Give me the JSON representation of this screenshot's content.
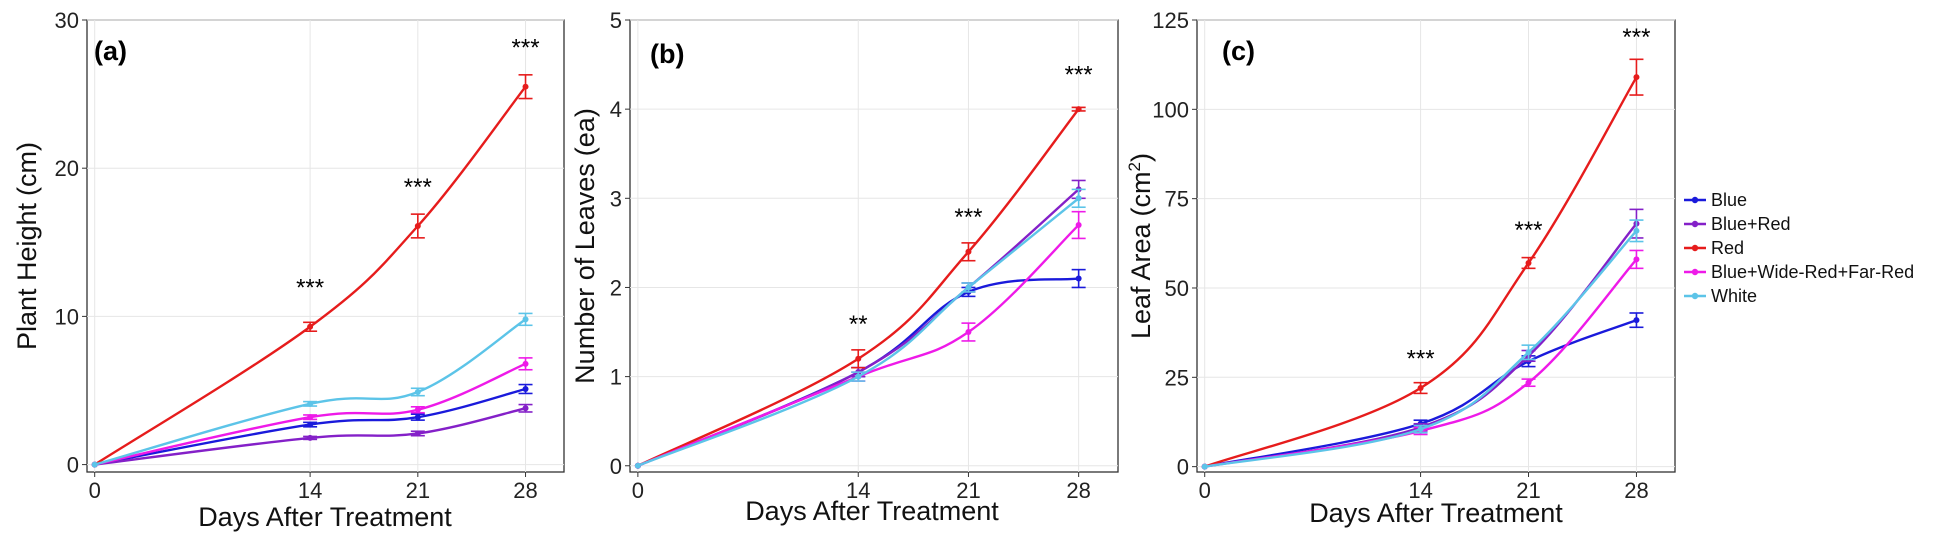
{
  "colors": {
    "Blue": "#1a1adb",
    "Blue+Red": "#8420c8",
    "Red": "#e61c1c",
    "Blue+Wide-Red+Far-Red": "#ee1ae8",
    "White": "#5cc4e8"
  },
  "legend": {
    "placement": "right",
    "entries": [
      "Blue",
      "Blue+Red",
      "Red",
      "Blue+Wide-Red+Far-Red",
      "White"
    ]
  },
  "chart_data": [
    {
      "type": "line",
      "panel_label": "(a)",
      "xlabel": "Days After Treatment",
      "ylabel": "Plant Height (cm)",
      "ylabel_main": "Plant Height",
      "ylabel_unit": "(cm)",
      "x": [
        0,
        14,
        21,
        28
      ],
      "xticks": [
        "0",
        "14",
        "21",
        "28"
      ],
      "xlim": [
        -0.5,
        30.5
      ],
      "ylim": [
        -0.5,
        30
      ],
      "yticks": [
        0,
        10,
        20,
        30
      ],
      "ytick_labels": [
        "0",
        "10",
        "20",
        "30"
      ],
      "grid": true,
      "series": [
        {
          "name": "Blue",
          "values": [
            0,
            2.7,
            3.2,
            5.1
          ],
          "errors": [
            0,
            0.15,
            0.2,
            0.3
          ]
        },
        {
          "name": "Blue+Red",
          "values": [
            0,
            1.8,
            2.1,
            3.8
          ],
          "errors": [
            0,
            0.1,
            0.15,
            0.25
          ]
        },
        {
          "name": "Red",
          "values": [
            0,
            9.3,
            16.1,
            25.5
          ],
          "errors": [
            0,
            0.3,
            0.8,
            0.8
          ]
        },
        {
          "name": "Blue+Wide-Red+Far-Red",
          "values": [
            0,
            3.2,
            3.7,
            6.8
          ],
          "errors": [
            0,
            0.15,
            0.2,
            0.4
          ]
        },
        {
          "name": "White",
          "values": [
            0,
            4.1,
            4.9,
            9.8
          ],
          "errors": [
            0,
            0.15,
            0.25,
            0.4
          ]
        }
      ],
      "annotations": [
        {
          "x": 14,
          "y": 11.4,
          "text": "***"
        },
        {
          "x": 21,
          "y": 18.2,
          "text": "***"
        },
        {
          "x": 28,
          "y": 27.6,
          "text": "***"
        }
      ]
    },
    {
      "type": "line",
      "panel_label": "(b)",
      "xlabel": "Days After Treatment",
      "ylabel": "Number of Leaves (ea)",
      "ylabel_main": "Number of Leaves",
      "ylabel_unit": "(ea)",
      "x": [
        0,
        14,
        21,
        28
      ],
      "xticks": [
        "0",
        "14",
        "21",
        "28"
      ],
      "xlim": [
        -0.5,
        30.5
      ],
      "ylim": [
        -0.07,
        5
      ],
      "yticks": [
        0,
        1,
        2,
        3,
        4,
        5
      ],
      "ytick_labels": [
        "0",
        "1",
        "2",
        "3",
        "4",
        "5"
      ],
      "grid": true,
      "series": [
        {
          "name": "Blue",
          "values": [
            0,
            1.05,
            1.95,
            2.1
          ],
          "errors": [
            0,
            0.05,
            0.05,
            0.1
          ]
        },
        {
          "name": "Blue+Red",
          "values": [
            0,
            1.05,
            2.0,
            3.1
          ],
          "errors": [
            0,
            0.05,
            0.05,
            0.1
          ]
        },
        {
          "name": "Red",
          "values": [
            0,
            1.2,
            2.4,
            4.0
          ],
          "errors": [
            0,
            0.1,
            0.1,
            0.02
          ]
        },
        {
          "name": "Blue+Wide-Red+Far-Red",
          "values": [
            0,
            1.0,
            1.5,
            2.7
          ],
          "errors": [
            0,
            0.05,
            0.1,
            0.15
          ]
        },
        {
          "name": "White",
          "values": [
            0,
            1.0,
            2.0,
            3.0
          ],
          "errors": [
            0,
            0.05,
            0.05,
            0.1
          ]
        }
      ],
      "annotations": [
        {
          "x": 14,
          "y": 1.5,
          "text": "**"
        },
        {
          "x": 21,
          "y": 2.7,
          "text": "***"
        },
        {
          "x": 28,
          "y": 4.3,
          "text": "***"
        }
      ]
    },
    {
      "type": "line",
      "panel_label": "(c)",
      "xlabel": "Days After Treatment",
      "ylabel": "Leaf Area (cm2)",
      "ylabel_main": "Leaf Area",
      "ylabel_unit_base": "(cm",
      "ylabel_unit_sup": "2",
      "ylabel_unit_close": ")",
      "x": [
        0,
        14,
        21,
        28
      ],
      "xticks": [
        "0",
        "14",
        "21",
        "28"
      ],
      "xlim": [
        -0.5,
        30.5
      ],
      "ylim": [
        -1.5,
        125
      ],
      "yticks": [
        0,
        25,
        50,
        75,
        100,
        125
      ],
      "ytick_labels": [
        "0",
        "25",
        "50",
        "75",
        "100",
        "125"
      ],
      "grid": true,
      "series": [
        {
          "name": "Blue",
          "values": [
            0,
            12,
            29.5,
            41
          ],
          "errors": [
            0,
            1,
            1.5,
            2
          ]
        },
        {
          "name": "Blue+Red",
          "values": [
            0,
            11,
            31,
            68
          ],
          "errors": [
            0,
            1,
            1.5,
            4
          ]
        },
        {
          "name": "Red",
          "values": [
            0,
            22,
            57,
            109
          ],
          "errors": [
            0,
            1.5,
            1.5,
            5
          ]
        },
        {
          "name": "Blue+Wide-Red+Far-Red",
          "values": [
            0,
            10,
            23.5,
            58
          ],
          "errors": [
            0,
            1,
            1,
            2.5
          ]
        },
        {
          "name": "White",
          "values": [
            0,
            10.5,
            32,
            66
          ],
          "errors": [
            0,
            1,
            2,
            3
          ]
        }
      ],
      "annotations": [
        {
          "x": 14,
          "y": 28,
          "text": "***"
        },
        {
          "x": 21,
          "y": 64,
          "text": "***"
        },
        {
          "x": 28,
          "y": 118,
          "text": "***"
        }
      ]
    }
  ]
}
